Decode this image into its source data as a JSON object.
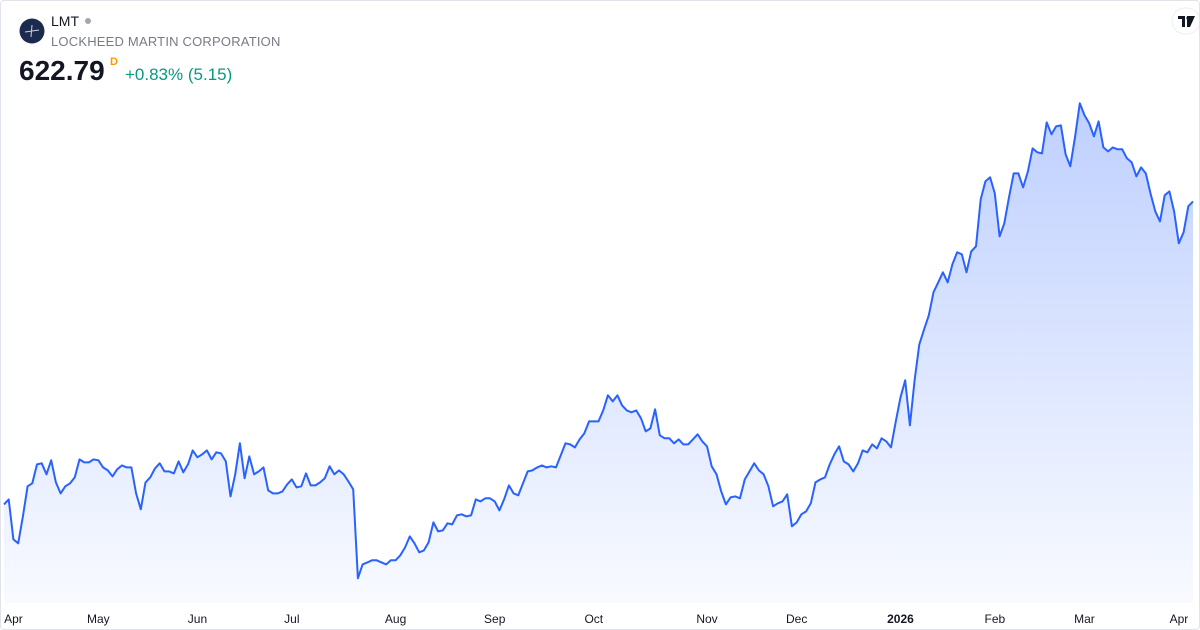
{
  "header": {
    "symbol": "LMT",
    "name": "LOCKHEED MARTIN CORPORATION",
    "price": "622.79",
    "interval": "D",
    "change": "+0.83% (5.15)"
  },
  "chart_data": {
    "type": "area",
    "color": "#2962ff",
    "xlim": [
      0,
      252
    ],
    "ylim": [
      397,
      736
    ],
    "xticks": [
      {
        "value": 2,
        "label": "Apr"
      },
      {
        "value": 20,
        "label": "May"
      },
      {
        "value": 41,
        "label": "Jun"
      },
      {
        "value": 61,
        "label": "Jul"
      },
      {
        "value": 83,
        "label": "Aug"
      },
      {
        "value": 104,
        "label": "Sep"
      },
      {
        "value": 125,
        "label": "Oct"
      },
      {
        "value": 149,
        "label": "Nov"
      },
      {
        "value": 168,
        "label": "Dec"
      },
      {
        "value": 190,
        "label": "2026"
      },
      {
        "value": 210,
        "label": "Feb"
      },
      {
        "value": 229,
        "label": "Mar"
      },
      {
        "value": 251,
        "label": "Apr"
      }
    ],
    "bold_ticks": [
      "2026"
    ],
    "values": [
      451.6,
      454.4,
      431.8,
      429.6,
      444.8,
      461.8,
      463.5,
      474.2,
      474.8,
      468.6,
      476.5,
      464.0,
      457.8,
      461.8,
      463.5,
      466.9,
      477.0,
      475.3,
      475.3,
      477.0,
      476.5,
      472.5,
      470.8,
      467.4,
      471.4,
      473.6,
      472.5,
      472.5,
      457.8,
      448.8,
      464.0,
      466.9,
      471.9,
      474.8,
      470.2,
      470.2,
      469.1,
      475.9,
      469.7,
      474.2,
      482.1,
      478.2,
      479.9,
      482.1,
      477.0,
      481.0,
      480.4,
      475.9,
      456.1,
      468.6,
      486.1,
      466.3,
      478.7,
      468.6,
      470.2,
      472.5,
      459.5,
      457.8,
      457.8,
      458.9,
      462.9,
      465.7,
      461.2,
      461.8,
      469.1,
      462.3,
      462.3,
      464.0,
      466.3,
      473.1,
      468.6,
      470.8,
      468.6,
      464.6,
      460.1,
      409.8,
      417.7,
      418.8,
      420.0,
      420.0,
      418.8,
      417.7,
      420.0,
      420.0,
      422.8,
      427.3,
      433.5,
      429.6,
      424.5,
      425.6,
      430.1,
      441.4,
      436.3,
      436.9,
      440.9,
      440.3,
      445.4,
      446.0,
      444.8,
      445.4,
      454.4,
      453.3,
      455.0,
      455.0,
      453.3,
      448.2,
      454.4,
      462.3,
      457.8,
      456.7,
      463.5,
      470.2,
      470.8,
      472.5,
      473.6,
      472.5,
      473.1,
      472.5,
      479.3,
      486.1,
      485.5,
      483.8,
      488.3,
      491.7,
      498.5,
      498.5,
      498.5,
      504.7,
      513.2,
      509.8,
      513.2,
      507.5,
      504.7,
      503.6,
      504.7,
      500.2,
      492.8,
      494.5,
      505.3,
      490.6,
      488.9,
      488.9,
      486.1,
      488.3,
      485.5,
      485.5,
      488.3,
      491.2,
      487.2,
      484.4,
      473.1,
      468.6,
      458.9,
      451.6,
      455.6,
      456.1,
      455.0,
      465.7,
      470.2,
      474.8,
      470.8,
      468.6,
      461.8,
      450.5,
      452.2,
      453.3,
      457.3,
      439.2,
      441.4,
      446.0,
      447.6,
      452.2,
      464.0,
      465.7,
      466.9,
      474.2,
      479.9,
      484.4,
      475.9,
      474.2,
      470.2,
      474.8,
      482.1,
      481.0,
      485.5,
      483.2,
      488.9,
      487.2,
      483.8,
      498.5,
      512.1,
      521.7,
      496.2,
      521.7,
      542.0,
      550.5,
      558.4,
      571.4,
      577.0,
      582.7,
      577.0,
      587.2,
      594.0,
      592.9,
      582.7,
      594.5,
      597.4,
      623.9,
      634.1,
      636.4,
      627.3,
      603.0,
      610.4,
      625.1,
      638.6,
      638.6,
      630.7,
      639.7,
      652.7,
      650.5,
      649.9,
      667.4,
      660.7,
      665.2,
      665.7,
      649.4,
      642.6,
      659.0,
      678.2,
      671.4,
      666.9,
      659.5,
      668.0,
      653.3,
      651.0,
      653.3,
      652.2,
      652.2,
      647.1,
      644.8,
      636.9,
      642.0,
      638.6,
      627.3,
      617.1,
      611.5,
      626.2,
      628.4,
      617.1,
      599.1,
      605.3,
      620.0,
      622.79
    ]
  }
}
